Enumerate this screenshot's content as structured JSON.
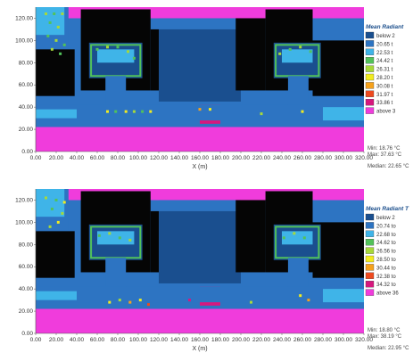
{
  "chart_data": [
    {
      "type": "heatmap",
      "title": "",
      "xlabel": "X (m)",
      "ylabel": "",
      "xlim": [
        0,
        320
      ],
      "ylim": [
        0,
        130
      ],
      "x_ticks": [
        "0.00",
        "20.00",
        "40.00",
        "60.00",
        "80.00",
        "100.00",
        "120.00",
        "140.00",
        "160.00",
        "180.00",
        "200.00",
        "220.00",
        "240.00",
        "260.00",
        "280.00",
        "300.00",
        "320.00"
      ],
      "y_ticks": [
        "0.00",
        "20.00",
        "40.00",
        "60.00",
        "80.00",
        "100.00",
        "120.00"
      ],
      "legend_title": "Mean Radiant",
      "legend_placement": "right",
      "legend": [
        {
          "label": "below 2",
          "color": "#1a4f8f"
        },
        {
          "label": "20.65 t",
          "color": "#2d74c2"
        },
        {
          "label": "22.53 t",
          "color": "#3fb4e8"
        },
        {
          "label": "24.42 t",
          "color": "#52c25a"
        },
        {
          "label": "26.31 t",
          "color": "#a7d93a"
        },
        {
          "label": "28.20 t",
          "color": "#f2ec20"
        },
        {
          "label": "30.08 t",
          "color": "#f6a21c"
        },
        {
          "label": "31.97 t",
          "color": "#ee4a1f"
        },
        {
          "label": "33.86 t",
          "color": "#d6187e"
        },
        {
          "label": "above 3",
          "color": "#f03cdc"
        }
      ],
      "stats": {
        "min": "Min: 18.76 °C",
        "max": "Max: 37.63 °C",
        "median": "Median: 22.65 °C"
      }
    },
    {
      "type": "heatmap",
      "title": "",
      "xlabel": "X (m)",
      "ylabel": "",
      "xlim": [
        0,
        320
      ],
      "ylim": [
        0,
        130
      ],
      "x_ticks": [
        "0.00",
        "20.00",
        "40.00",
        "60.00",
        "80.00",
        "100.00",
        "120.00",
        "140.00",
        "160.00",
        "180.00",
        "200.00",
        "220.00",
        "240.00",
        "260.00",
        "280.00",
        "300.00",
        "320.00"
      ],
      "y_ticks": [
        "0.00",
        "20.00",
        "40.00",
        "60.00",
        "80.00",
        "100.00",
        "120.00"
      ],
      "legend_title": "Mean Radiant T",
      "legend_placement": "right",
      "legend": [
        {
          "label": "below 2",
          "color": "#1a4f8f"
        },
        {
          "label": "20.74 to",
          "color": "#2d74c2"
        },
        {
          "label": "22.68 to",
          "color": "#3fb4e8"
        },
        {
          "label": "24.62 to",
          "color": "#52c25a"
        },
        {
          "label": "26.56 to",
          "color": "#a7d93a"
        },
        {
          "label": "28.50 to",
          "color": "#f2ec20"
        },
        {
          "label": "30.44 to",
          "color": "#f6a21c"
        },
        {
          "label": "32.38 to",
          "color": "#ee4a1f"
        },
        {
          "label": "34.32 to",
          "color": "#d6187e"
        },
        {
          "label": "above 36",
          "color": "#f03cdc"
        }
      ],
      "stats": {
        "min": "Min: 18.80 °C",
        "max": "Max: 38.19 °C",
        "median": "Median: 22.95 °C"
      }
    }
  ]
}
